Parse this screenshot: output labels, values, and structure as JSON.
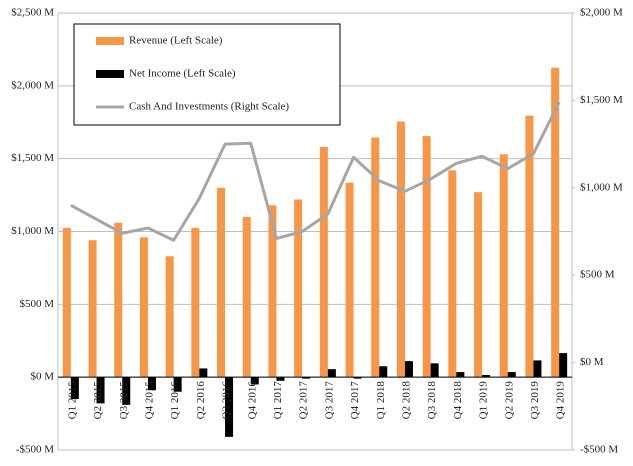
{
  "chart_data": {
    "type": "bar-line",
    "categories": [
      "Q1 2015",
      "Q2 2015",
      "Q3 2015",
      "Q4 2015",
      "Q1 2016",
      "Q2 2016",
      "Q3 2016",
      "Q4 2016",
      "Q1 2017",
      "Q2 2017",
      "Q3 2017",
      "Q4 2017",
      "Q1 2018",
      "Q2 2018",
      "Q3 2018",
      "Q4 2018",
      "Q1 2019",
      "Q2 2019",
      "Q3 2019",
      "Q4 2019"
    ],
    "series": [
      {
        "name": "Revenue (Left Scale)",
        "type": "bar",
        "color": "#f79646",
        "values": [
          1025,
          940,
          1060,
          960,
          830,
          1025,
          1300,
          1100,
          1180,
          1220,
          1580,
          1335,
          1645,
          1755,
          1655,
          1420,
          1270,
          1530,
          1795,
          2125
        ]
      },
      {
        "name": "Net Income (Left Scale)",
        "type": "bar",
        "color": "#000000",
        "values": [
          -150,
          -180,
          -190,
          -90,
          -100,
          60,
          -410,
          -50,
          -25,
          -10,
          55,
          -10,
          75,
          110,
          95,
          35,
          15,
          35,
          115,
          165
        ]
      },
      {
        "name": "Cash And Investments (Right Scale)",
        "type": "line",
        "axis": "y2",
        "color": "#a6a6a6",
        "values": [
          900,
          820,
          740,
          770,
          700,
          940,
          1250,
          1255,
          710,
          750,
          850,
          1175,
          1040,
          980,
          1050,
          1140,
          1180,
          1110,
          1195,
          1490
        ]
      }
    ],
    "ylim": [
      -500,
      2500
    ],
    "yticks": [
      {
        "value": -500,
        "label": "-$500 M"
      },
      {
        "value": 0,
        "label": "$0 M"
      },
      {
        "value": 500,
        "label": "$500 M"
      },
      {
        "value": 1000,
        "label": "$1,000 M"
      },
      {
        "value": 1500,
        "label": "$1,500 M"
      },
      {
        "value": 2000,
        "label": "$2,000 M"
      },
      {
        "value": 2500,
        "label": "$2,500 M"
      }
    ],
    "y2lim": [
      -500,
      2000
    ],
    "y2ticks": [
      {
        "value": -500,
        "label": "-$500 M"
      },
      {
        "value": 0,
        "label": "$0 M"
      },
      {
        "value": 500,
        "label": "$500 M"
      },
      {
        "value": 1000,
        "label": "$1,000 M"
      },
      {
        "value": 1500,
        "label": "$1,500 M"
      },
      {
        "value": 2000,
        "label": "$2,000 M"
      }
    ],
    "grid": true,
    "legend": "top-left"
  }
}
